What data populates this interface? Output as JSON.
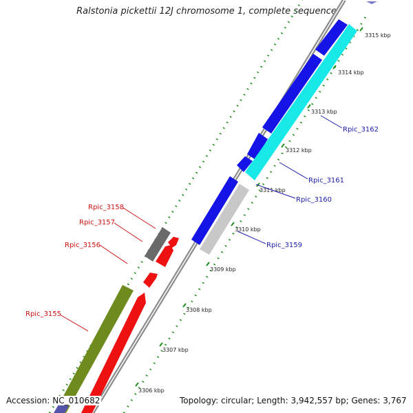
{
  "title": "Ralstonia pickettii 12J chromosome 1, complete sequence",
  "accession": "Accession: NC_010682",
  "topology": "Topology: circular; Length: 3,942,557 bp; Genes: 3,767",
  "ticks": [
    "3306 kbp",
    "3307 kbp",
    "3308 kbp",
    "3309 kbp",
    "3310 kbp",
    "3311 kbp",
    "3312 kbp",
    "3313 kbp",
    "3314 kbp",
    "3315 kbp"
  ],
  "genes_forward": [
    "Rpic_3159",
    "Rpic_3160",
    "Rpic_3161",
    "Rpic_3162"
  ],
  "genes_reverse": [
    "Rpic_3155",
    "Rpic_3156",
    "Rpic_3157",
    "Rpic_3158"
  ],
  "colors": {
    "backbone": "#8c8c8c",
    "cds_forward": "#1414e6",
    "cds_cyan": "#18e8e8",
    "cds_grey": "#c8c8c8",
    "cds_reverse": "#ee1111",
    "cds_olive": "#6e8c1e",
    "cds_dark": "#6a6a6a",
    "gc_dots": "#1e8c1e",
    "label_forward": "#1a1aa8",
    "label_reverse": "#cc1111"
  }
}
